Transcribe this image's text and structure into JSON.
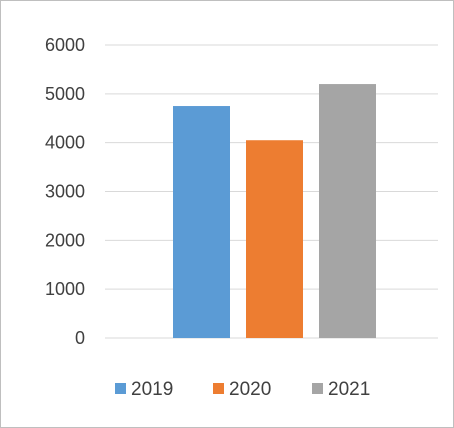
{
  "chart_data": {
    "type": "bar",
    "categories": [
      ""
    ],
    "series": [
      {
        "name": "2019",
        "values": [
          4750
        ],
        "color": "#5b9bd5"
      },
      {
        "name": "2020",
        "values": [
          4050
        ],
        "color": "#ed7d31"
      },
      {
        "name": "2021",
        "values": [
          5200
        ],
        "color": "#a5a5a5"
      }
    ],
    "yticks": [
      "0",
      "1000",
      "2000",
      "3000",
      "4000",
      "5000",
      "6000"
    ],
    "ylim": [
      0,
      6000
    ],
    "grid": true,
    "gridline_color": "#d9d9d9",
    "legend_position": "bottom"
  }
}
